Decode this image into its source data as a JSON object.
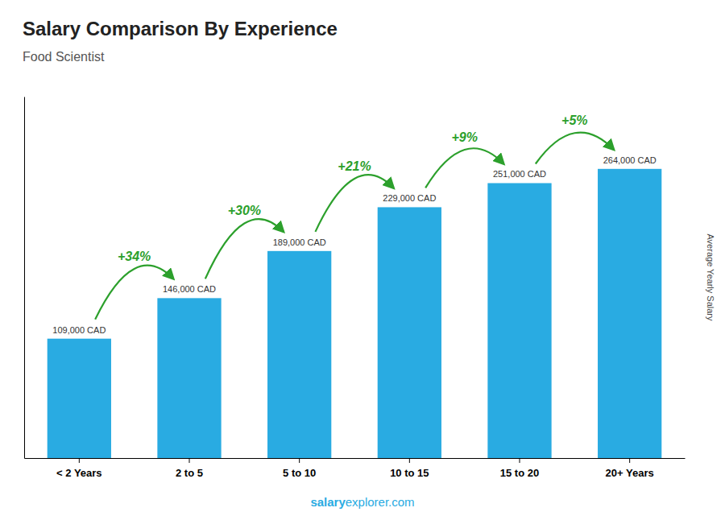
{
  "chart_data": {
    "type": "bar",
    "title": "Salary Comparison By Experience",
    "subtitle": "Food Scientist",
    "ylabel": "Average Yearly Salary",
    "categories": [
      "< 2 Years",
      "2 to 5",
      "5 to 10",
      "10 to 15",
      "15 to 20",
      "20+ Years"
    ],
    "values": [
      109000,
      146000,
      189000,
      229000,
      251000,
      264000
    ],
    "value_labels": [
      "109,000 CAD",
      "146,000 CAD",
      "189,000 CAD",
      "229,000 CAD",
      "251,000 CAD",
      "264,000 CAD"
    ],
    "data_labels": true,
    "annotations": [
      "+34%",
      "+30%",
      "+21%",
      "+9%",
      "+5%"
    ],
    "watermark": [
      "salary",
      "explorer.com"
    ],
    "color": "#29ABE2",
    "ylim": [
      0,
      330000
    ],
    "tick_labels": "x",
    "grid": false
  }
}
